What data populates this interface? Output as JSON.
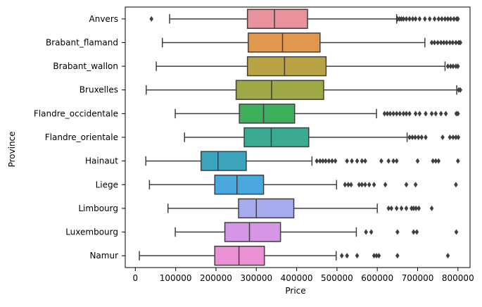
{
  "chart_data": {
    "type": "boxplot",
    "orientation": "horizontal",
    "title": "",
    "xlabel": "Price",
    "ylabel": "Province",
    "xlim": [
      -25000,
      830000
    ],
    "xticks": [
      0,
      100000,
      200000,
      300000,
      400000,
      500000,
      600000,
      700000,
      800000
    ],
    "xtick_labels": [
      "0",
      "100000",
      "200000",
      "300000",
      "400000",
      "500000",
      "600000",
      "700000",
      "800000"
    ],
    "grid": false,
    "legend": "none",
    "categories": [
      {
        "name": "Anvers",
        "color": "#e8929b",
        "whisker_low": 85000,
        "q1": 278000,
        "median": 345000,
        "q3": 427000,
        "whisker_high": 648000,
        "outliers": [
          40000,
          650000,
          655000,
          660000,
          665000,
          672000,
          680000,
          688000,
          695000,
          705000,
          718000,
          730000,
          742000,
          752000,
          760000,
          768000,
          775000,
          782000,
          790000,
          797000,
          800000
        ]
      },
      {
        "name": "Brabant_flamand",
        "color": "#e0984e",
        "whisker_low": 67000,
        "q1": 280000,
        "median": 365000,
        "q3": 458000,
        "whisker_high": 718000,
        "outliers": [
          735000,
          742000,
          750000,
          758000,
          765000,
          772000,
          780000,
          787000,
          795000,
          802000,
          806000
        ]
      },
      {
        "name": "Brabant_wallon",
        "color": "#b9a244",
        "whisker_low": 52000,
        "q1": 278000,
        "median": 370000,
        "q3": 473000,
        "whisker_high": 768000,
        "outliers": [
          775000,
          782000,
          788000,
          795000,
          800000
        ]
      },
      {
        "name": "Bruxelles",
        "color": "#9fa844",
        "whisker_low": 27000,
        "q1": 250000,
        "median": 338000,
        "q3": 467000,
        "whisker_high": 797000,
        "outliers": [
          802000,
          806000
        ]
      },
      {
        "name": "Flandre_occidentale",
        "color": "#3daf5b",
        "whisker_low": 99000,
        "q1": 258000,
        "median": 318000,
        "q3": 395000,
        "whisker_high": 598000,
        "outliers": [
          618000,
          625000,
          632000,
          640000,
          648000,
          656000,
          665000,
          672000,
          680000,
          695000,
          705000,
          720000,
          735000,
          745000,
          758000,
          770000,
          796000,
          800000
        ]
      },
      {
        "name": "Flandre_orientale",
        "color": "#3aaa92",
        "whisker_low": 122000,
        "q1": 270000,
        "median": 337000,
        "q3": 430000,
        "whisker_high": 674000,
        "outliers": [
          680000,
          687000,
          694000,
          702000,
          710000,
          720000,
          762000,
          780000,
          788000,
          795000,
          801000
        ]
      },
      {
        "name": "Hainaut",
        "color": "#3ba3bc",
        "whisker_low": 26000,
        "q1": 163000,
        "median": 205000,
        "q3": 275000,
        "whisker_high": 438000,
        "outliers": [
          450000,
          458000,
          465000,
          472000,
          480000,
          488000,
          496000,
          525000,
          537000,
          550000,
          562000,
          570000,
          610000,
          628000,
          640000,
          648000,
          700000,
          738000,
          745000,
          752000,
          800000
        ]
      },
      {
        "name": "Liege",
        "color": "#49a9de",
        "whisker_low": 35000,
        "q1": 197000,
        "median": 252000,
        "q3": 318000,
        "whisker_high": 499000,
        "outliers": [
          520000,
          528000,
          535000,
          555000,
          562000,
          570000,
          580000,
          592000,
          620000,
          672000,
          695000,
          795000
        ]
      },
      {
        "name": "Limbourg",
        "color": "#a5abee",
        "whisker_low": 81000,
        "q1": 256000,
        "median": 300000,
        "q3": 393000,
        "whisker_high": 600000,
        "outliers": [
          628000,
          635000,
          648000,
          660000,
          672000,
          685000,
          690000,
          696000,
          703000,
          735000
        ]
      },
      {
        "name": "Luxembourg",
        "color": "#d795e8",
        "whisker_low": 99000,
        "q1": 222000,
        "median": 283000,
        "q3": 360000,
        "whisker_high": 548000,
        "outliers": [
          572000,
          585000,
          650000,
          690000,
          698000,
          796000
        ]
      },
      {
        "name": "Namur",
        "color": "#ec90d6",
        "whisker_low": 10000,
        "q1": 197000,
        "median": 257000,
        "q3": 320000,
        "whisker_high": 498000,
        "outliers": [
          512000,
          525000,
          550000,
          592000,
          598000,
          604000,
          650000,
          775000
        ]
      }
    ]
  }
}
